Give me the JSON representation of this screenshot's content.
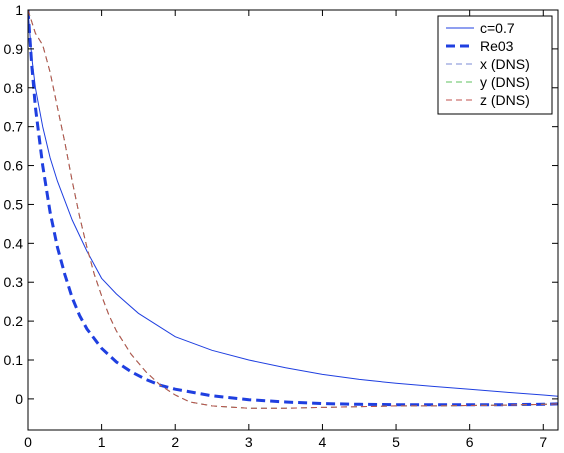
{
  "chart_data": {
    "type": "line",
    "title": "",
    "xlabel": "",
    "ylabel": "",
    "xlim": [
      0,
      7.2
    ],
    "ylim": [
      -0.08,
      1.0
    ],
    "xticks": [
      0,
      1,
      2,
      3,
      4,
      5,
      6,
      7
    ],
    "yticks": [
      0,
      0.1,
      0.2,
      0.3,
      0.4,
      0.5,
      0.6,
      0.7,
      0.8,
      0.9,
      1
    ],
    "xtick_labels": [
      "0",
      "1",
      "2",
      "3",
      "4",
      "5",
      "6",
      "7"
    ],
    "ytick_labels": [
      "0",
      "0.1",
      "0.2",
      "0.3",
      "0.4",
      "0.5",
      "0.6",
      "0.7",
      "0.8",
      "0.9",
      "1"
    ],
    "grid": false,
    "legend_position": "top-right",
    "series": [
      {
        "name": "c=0.7",
        "color": "#1f3fe0",
        "style": "solid",
        "x": [
          0,
          0.05,
          0.1,
          0.2,
          0.3,
          0.4,
          0.5,
          0.6,
          0.8,
          1.0,
          1.2,
          1.5,
          2.0,
          2.5,
          3.0,
          3.5,
          4.0,
          4.5,
          5.0,
          5.5,
          6.0,
          6.5,
          7.0,
          7.2
        ],
        "y": [
          1.0,
          0.88,
          0.8,
          0.7,
          0.62,
          0.56,
          0.51,
          0.46,
          0.38,
          0.31,
          0.27,
          0.22,
          0.16,
          0.125,
          0.1,
          0.08,
          0.063,
          0.05,
          0.04,
          0.032,
          0.025,
          0.017,
          0.01,
          0.007
        ]
      },
      {
        "name": "Re03",
        "color": "#1f3fe0",
        "style": "dashed-thick",
        "x": [
          0,
          0.05,
          0.1,
          0.2,
          0.3,
          0.4,
          0.5,
          0.6,
          0.7,
          0.8,
          1.0,
          1.2,
          1.4,
          1.6,
          1.8,
          2.0,
          2.5,
          3.0,
          3.5,
          4.0,
          4.5,
          5.0,
          5.5,
          6.0,
          6.5,
          7.0,
          7.2
        ],
        "y": [
          1.0,
          0.86,
          0.75,
          0.6,
          0.48,
          0.39,
          0.32,
          0.26,
          0.215,
          0.18,
          0.13,
          0.095,
          0.07,
          0.05,
          0.035,
          0.025,
          0.008,
          -0.002,
          -0.008,
          -0.012,
          -0.014,
          -0.015,
          -0.015,
          -0.015,
          -0.015,
          -0.014,
          -0.013
        ]
      },
      {
        "name": "x (DNS)",
        "color": "#7b8bd6",
        "style": "dashed",
        "x": [
          0,
          0.1,
          0.2,
          0.3,
          0.4,
          0.5,
          0.6,
          0.7,
          0.8,
          0.9,
          1.0,
          1.1,
          1.2,
          1.4,
          1.6,
          1.8,
          2.0,
          2.2,
          2.5,
          3.0,
          3.5,
          4.0,
          4.5,
          5.0,
          5.5,
          6.0,
          6.5,
          7.0,
          7.2
        ],
        "y": [
          1.0,
          0.94,
          0.91,
          0.84,
          0.75,
          0.66,
          0.56,
          0.47,
          0.39,
          0.32,
          0.265,
          0.215,
          0.175,
          0.115,
          0.07,
          0.035,
          0.01,
          -0.008,
          -0.018,
          -0.024,
          -0.024,
          -0.022,
          -0.02,
          -0.018,
          -0.018,
          -0.017,
          -0.016,
          -0.014,
          -0.013
        ]
      },
      {
        "name": "y (DNS)",
        "color": "#5fc25f",
        "style": "dashed",
        "x": [
          0,
          0.1,
          0.2,
          0.3,
          0.4,
          0.5,
          0.6,
          0.7,
          0.8,
          0.9,
          1.0,
          1.1,
          1.2,
          1.4,
          1.6,
          1.8,
          2.0,
          2.2,
          2.5,
          3.0,
          3.5,
          4.0,
          4.5,
          5.0,
          5.5,
          6.0,
          6.5,
          7.0,
          7.2
        ],
        "y": [
          1.0,
          0.94,
          0.91,
          0.84,
          0.75,
          0.66,
          0.56,
          0.47,
          0.39,
          0.32,
          0.265,
          0.215,
          0.175,
          0.115,
          0.07,
          0.035,
          0.01,
          -0.008,
          -0.018,
          -0.024,
          -0.024,
          -0.022,
          -0.02,
          -0.018,
          -0.018,
          -0.017,
          -0.016,
          -0.014,
          -0.013
        ]
      },
      {
        "name": "z (DNS)",
        "color": "#c0504d",
        "style": "dashed",
        "x": [
          0,
          0.1,
          0.2,
          0.3,
          0.4,
          0.5,
          0.6,
          0.7,
          0.8,
          0.9,
          1.0,
          1.1,
          1.2,
          1.4,
          1.6,
          1.8,
          2.0,
          2.2,
          2.5,
          3.0,
          3.5,
          4.0,
          4.5,
          5.0,
          5.5,
          6.0,
          6.5,
          7.0,
          7.2
        ],
        "y": [
          1.0,
          0.94,
          0.91,
          0.84,
          0.75,
          0.66,
          0.56,
          0.47,
          0.39,
          0.32,
          0.265,
          0.215,
          0.175,
          0.115,
          0.07,
          0.035,
          0.01,
          -0.008,
          -0.018,
          -0.024,
          -0.024,
          -0.022,
          -0.02,
          -0.018,
          -0.018,
          -0.017,
          -0.016,
          -0.014,
          -0.013
        ]
      }
    ]
  }
}
